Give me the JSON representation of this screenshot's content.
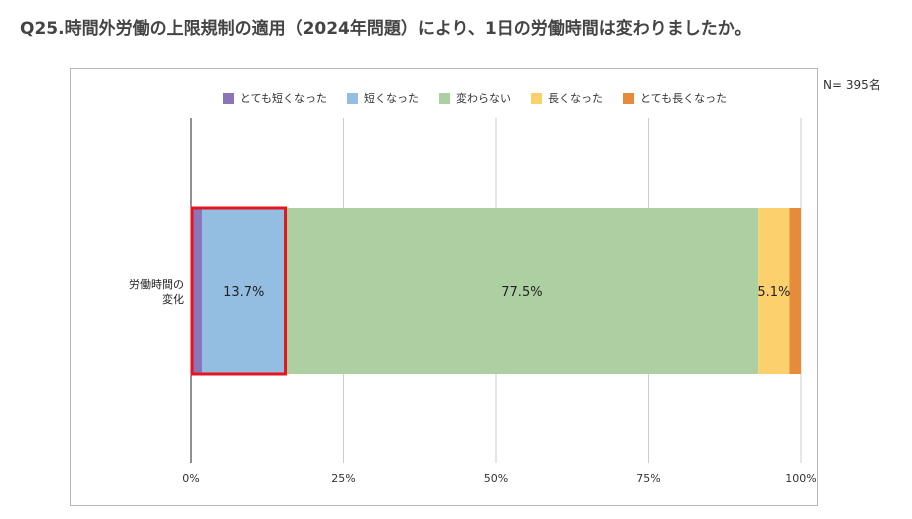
{
  "title": "Q25.時間外労働の上限規制の適用（2024年問題）により、1日の労働時間は変わりましたか。",
  "sample_size": "N= 395名",
  "colors": {
    "very_shorter": "#8a75b8",
    "shorter": "#93bee2",
    "same": "#acd0a1",
    "longer": "#fcd06d",
    "very_longer": "#e58b39",
    "highlight": "#e5141d",
    "grid": "#cccccc"
  },
  "chart_data": {
    "type": "bar",
    "orientation": "horizontal",
    "stacked": true,
    "percent": true,
    "categories": [
      "労働時間の変化"
    ],
    "category_lines": [
      "労働時間の",
      "変化"
    ],
    "xlim": [
      0,
      100
    ],
    "xticks": [
      "0%",
      "25%",
      "50%",
      "75%",
      "100%"
    ],
    "grid": true,
    "legend_position": "top",
    "series": [
      {
        "name": "とても短くなった",
        "values": [
          1.8
        ],
        "color": "#8a75b8",
        "label": ""
      },
      {
        "name": "短くなった",
        "values": [
          13.7
        ],
        "color": "#93bee2",
        "label": "13.7%"
      },
      {
        "name": "変わらない",
        "values": [
          77.5
        ],
        "color": "#acd0a1",
        "label": "77.5%"
      },
      {
        "name": "長くなった",
        "values": [
          5.1
        ],
        "color": "#fcd06d",
        "label": "5.1%"
      },
      {
        "name": "とても長くなった",
        "values": [
          1.9
        ],
        "color": "#e58b39",
        "label": ""
      }
    ],
    "highlight_series": [
      "とても短くなった",
      "短くなった"
    ]
  }
}
